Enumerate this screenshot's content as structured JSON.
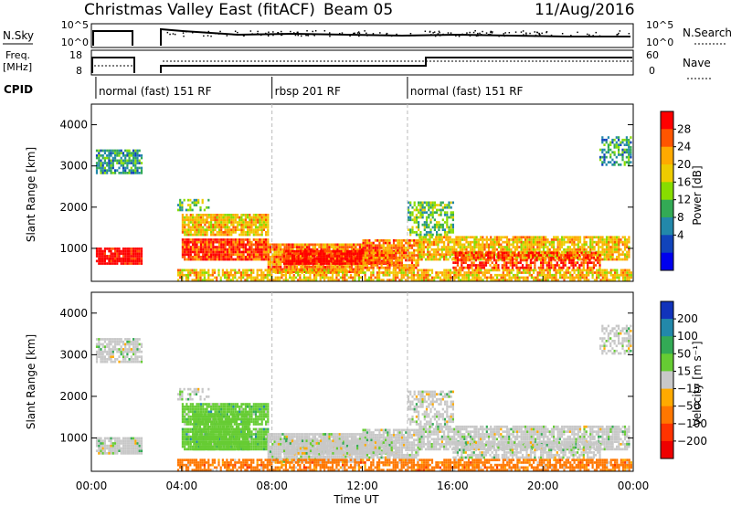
{
  "header": {
    "title": "Christmas Valley East (fitACF)",
    "beam": "Beam 05",
    "date": "11/Aug/2016"
  },
  "nsky_panel": {
    "label": "N.Sky",
    "right_label": "N.Search",
    "left_ticks": [
      "10^5",
      "10^0"
    ],
    "right_ticks": [
      "10^5",
      "10^0"
    ]
  },
  "freq_panel": {
    "label_line1": "Freq.",
    "label_line2": "[MHz]",
    "right_label": "Nave",
    "left_ticks": [
      "18",
      "8"
    ],
    "right_ticks": [
      "60",
      "0"
    ]
  },
  "cpid": {
    "label": "CPID",
    "segments": [
      {
        "start_hour": 0.2,
        "label": "normal (fast) 151 RF"
      },
      {
        "start_hour": 8.0,
        "label": "rbsp 201 RF"
      },
      {
        "start_hour": 14.0,
        "label": "normal (fast) 151 RF"
      }
    ]
  },
  "chart_data": [
    {
      "type": "heatmap",
      "name": "power",
      "ylabel": "Slant Range [km]",
      "yticks": [
        1000,
        2000,
        3000,
        4000
      ],
      "ylim": [
        200,
        4500
      ],
      "xlim": [
        0,
        24
      ],
      "colorbar": {
        "label": "Power [dB]",
        "ticks": [
          "28",
          "24",
          "20",
          "16",
          "12",
          "8",
          "4"
        ],
        "colors": [
          "#ff0000",
          "#ff5500",
          "#ffaa00",
          "#eecc00",
          "#88dd00",
          "#33aa55",
          "#2288aa",
          "#1144bb",
          "#0000ee"
        ]
      }
    },
    {
      "type": "heatmap",
      "name": "velocity",
      "ylabel": "Slant Range [km]",
      "yticks": [
        1000,
        2000,
        3000,
        4000
      ],
      "ylim": [
        200,
        4500
      ],
      "xlim": [
        0,
        24
      ],
      "colorbar": {
        "label": "Velocity [m s⁻¹]",
        "ticks": [
          "200",
          "100",
          "50",
          "15",
          "−15",
          "−50",
          "−100",
          "−200"
        ],
        "colors": [
          "#1133bb",
          "#2288aa",
          "#33aa55",
          "#66cc33",
          "#c8c8c8",
          "#ffaa00",
          "#ff7700",
          "#ff3300",
          "#ee0000"
        ]
      }
    }
  ],
  "xaxis": {
    "label": "Time UT",
    "ticks": [
      "00:00",
      "04:00",
      "08:00",
      "12:00",
      "16:00",
      "20:00",
      "00:00"
    ]
  }
}
